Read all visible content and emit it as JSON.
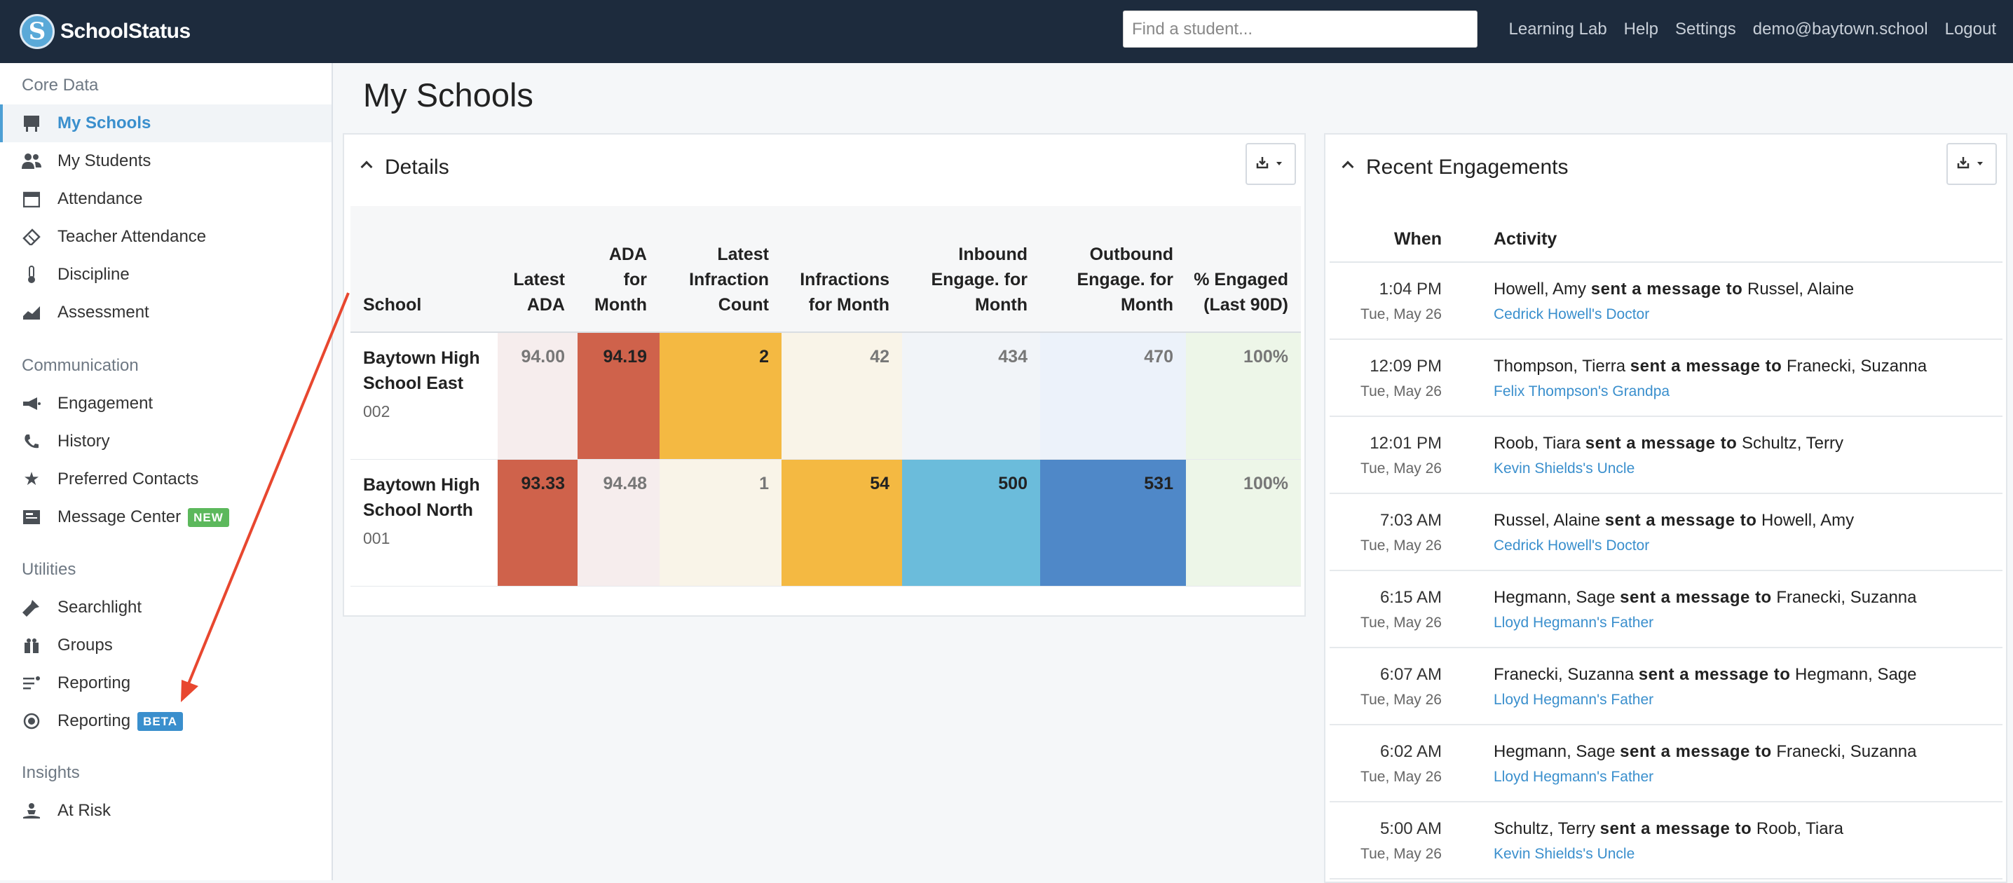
{
  "app": {
    "brand": "SchoolStatus",
    "logo_letter": "S"
  },
  "search": {
    "placeholder": "Find a student..."
  },
  "topnav": [
    "Learning Lab",
    "Help",
    "Settings",
    "demo@baytown.school",
    "Logout"
  ],
  "sidebar": {
    "sections": [
      {
        "title": "Core Data",
        "items": [
          {
            "label": "My Schools",
            "icon": "school-board-icon",
            "active": true
          },
          {
            "label": "My Students",
            "icon": "students-icon"
          },
          {
            "label": "Attendance",
            "icon": "calendar-icon"
          },
          {
            "label": "Teacher Attendance",
            "icon": "ticket-icon"
          },
          {
            "label": "Discipline",
            "icon": "thermometer-icon"
          },
          {
            "label": "Assessment",
            "icon": "area-chart-icon"
          }
        ]
      },
      {
        "title": "Communication",
        "items": [
          {
            "label": "Engagement",
            "icon": "bullhorn-icon"
          },
          {
            "label": "History",
            "icon": "phone-icon"
          },
          {
            "label": "Preferred Contacts",
            "icon": "star-icon"
          },
          {
            "label": "Message Center",
            "icon": "inbox-icon",
            "badge": "NEW"
          }
        ]
      },
      {
        "title": "Utilities",
        "items": [
          {
            "label": "Searchlight",
            "icon": "flashlight-icon"
          },
          {
            "label": "Groups",
            "icon": "groups-icon"
          },
          {
            "label": "Reporting",
            "icon": "list-icon"
          },
          {
            "label": "Reporting",
            "icon": "record-icon",
            "badge": "BETA"
          }
        ]
      },
      {
        "title": "Insights",
        "items": [
          {
            "label": "At Risk",
            "icon": "person-at-risk-icon"
          }
        ]
      }
    ]
  },
  "page": {
    "title": "My Schools"
  },
  "details": {
    "title": "Details",
    "columns": [
      "School",
      "Latest ADA",
      "ADA for Month",
      "Latest Infraction Count",
      "Infractions for Month",
      "Inbound Engage. for Month",
      "Outbound Engage. for Month",
      "% Engaged (Last 90D)"
    ],
    "rows": [
      {
        "school": "Baytown High School East",
        "code": "002",
        "values": [
          "94.00",
          "94.19",
          "2",
          "42",
          "434",
          "470",
          "100%"
        ],
        "colors": [
          "#f6eded",
          "#cf624b",
          "#f4b942",
          "#f9f4e8",
          "#f1f4f8",
          "#ecf2fa",
          "#edf6e8"
        ]
      },
      {
        "school": "Baytown High School North",
        "code": "001",
        "values": [
          "93.33",
          "94.48",
          "1",
          "54",
          "500",
          "531",
          "100%"
        ],
        "colors": [
          "#cf624b",
          "#f6eded",
          "#f9f4e8",
          "#f4b942",
          "#6bbcdb",
          "#4f88c8",
          "#edf6e8"
        ]
      }
    ]
  },
  "engagements": {
    "title": "Recent Engagements",
    "columns": [
      "When",
      "Activity"
    ],
    "verb": "sent a message to",
    "rows": [
      {
        "time": "1:04 PM",
        "date": "Tue, May 26",
        "from": "Howell, Amy",
        "to": "Russel, Alaine",
        "contact": "Cedrick Howell's Doctor"
      },
      {
        "time": "12:09 PM",
        "date": "Tue, May 26",
        "from": "Thompson, Tierra",
        "to": "Franecki, Suzanna",
        "contact": "Felix Thompson's Grandpa"
      },
      {
        "time": "12:01 PM",
        "date": "Tue, May 26",
        "from": "Roob, Tiara",
        "to": "Schultz, Terry",
        "contact": "Kevin Shields's Uncle"
      },
      {
        "time": "7:03 AM",
        "date": "Tue, May 26",
        "from": "Russel, Alaine",
        "to": "Howell, Amy",
        "contact": "Cedrick Howell's Doctor"
      },
      {
        "time": "6:15 AM",
        "date": "Tue, May 26",
        "from": "Hegmann, Sage",
        "to": "Franecki, Suzanna",
        "contact": "Lloyd Hegmann's Father"
      },
      {
        "time": "6:07 AM",
        "date": "Tue, May 26",
        "from": "Franecki, Suzanna",
        "to": "Hegmann, Sage",
        "contact": "Lloyd Hegmann's Father"
      },
      {
        "time": "6:02 AM",
        "date": "Tue, May 26",
        "from": "Hegmann, Sage",
        "to": "Franecki, Suzanna",
        "contact": "Lloyd Hegmann's Father"
      },
      {
        "time": "5:00 AM",
        "date": "Tue, May 26",
        "from": "Schultz, Terry",
        "to": "Roob, Tiara",
        "contact": "Kevin Shields's Uncle"
      }
    ]
  },
  "colors": {
    "topbar": "#1d2b3d",
    "accent": "#3a8fcd",
    "annotation_arrow": "#e8472f"
  }
}
